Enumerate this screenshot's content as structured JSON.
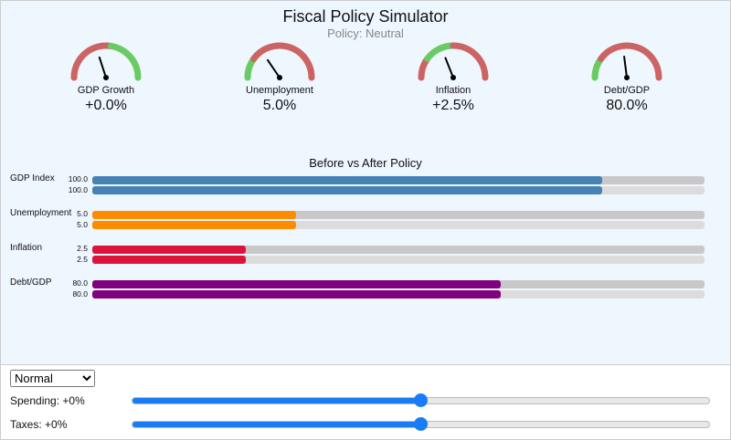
{
  "header": {
    "title": "Fiscal Policy Simulator",
    "subtitle": "Policy: Neutral"
  },
  "colors": {
    "good": "#6acb62",
    "bad": "#cd6464",
    "needle": "#000000"
  },
  "gauges": [
    {
      "label": "GDP Growth",
      "value": "+0.0%",
      "needle": 0.4,
      "zones": [
        [
          0,
          0.55,
          "bad"
        ],
        [
          0.55,
          1,
          "good"
        ]
      ]
    },
    {
      "label": "Unemployment",
      "value": "5.0%",
      "needle": 0.31,
      "zones": [
        [
          0,
          0.2,
          "good"
        ],
        [
          0.2,
          1,
          "bad"
        ]
      ]
    },
    {
      "label": "Inflation",
      "value": "+2.5%",
      "needle": 0.38,
      "zones": [
        [
          0,
          0.2,
          "bad"
        ],
        [
          0.2,
          0.5,
          "good"
        ],
        [
          0.5,
          1,
          "bad"
        ]
      ]
    },
    {
      "label": "Debt/GDP",
      "value": "80.0%",
      "needle": 0.46,
      "zones": [
        [
          0,
          0.2,
          "good"
        ],
        [
          0.2,
          1,
          "bad"
        ]
      ]
    }
  ],
  "comparison": {
    "title": "Before vs After Policy",
    "metrics": [
      {
        "label": "GDP Index",
        "before": "100.0",
        "after": "100.0",
        "fraction_before": 0.833,
        "fraction_after": 0.833,
        "color": "#4682b4"
      },
      {
        "label": "Unemployment",
        "before": "5.0",
        "after": "5.0",
        "fraction_before": 0.333,
        "fraction_after": 0.333,
        "color": "#ff8c00"
      },
      {
        "label": "Inflation",
        "before": "2.5",
        "after": "2.5",
        "fraction_before": 0.25,
        "fraction_after": 0.25,
        "color": "#dc143c"
      },
      {
        "label": "Debt/GDP",
        "before": "80.0",
        "after": "80.0",
        "fraction_before": 0.667,
        "fraction_after": 0.667,
        "color": "#800080"
      }
    ]
  },
  "controls": {
    "mode": {
      "selected": "Normal"
    },
    "spending": {
      "label": "Spending: +0%",
      "position": 0.5
    },
    "taxes": {
      "label": "Taxes: +0%",
      "position": 0.5
    }
  }
}
